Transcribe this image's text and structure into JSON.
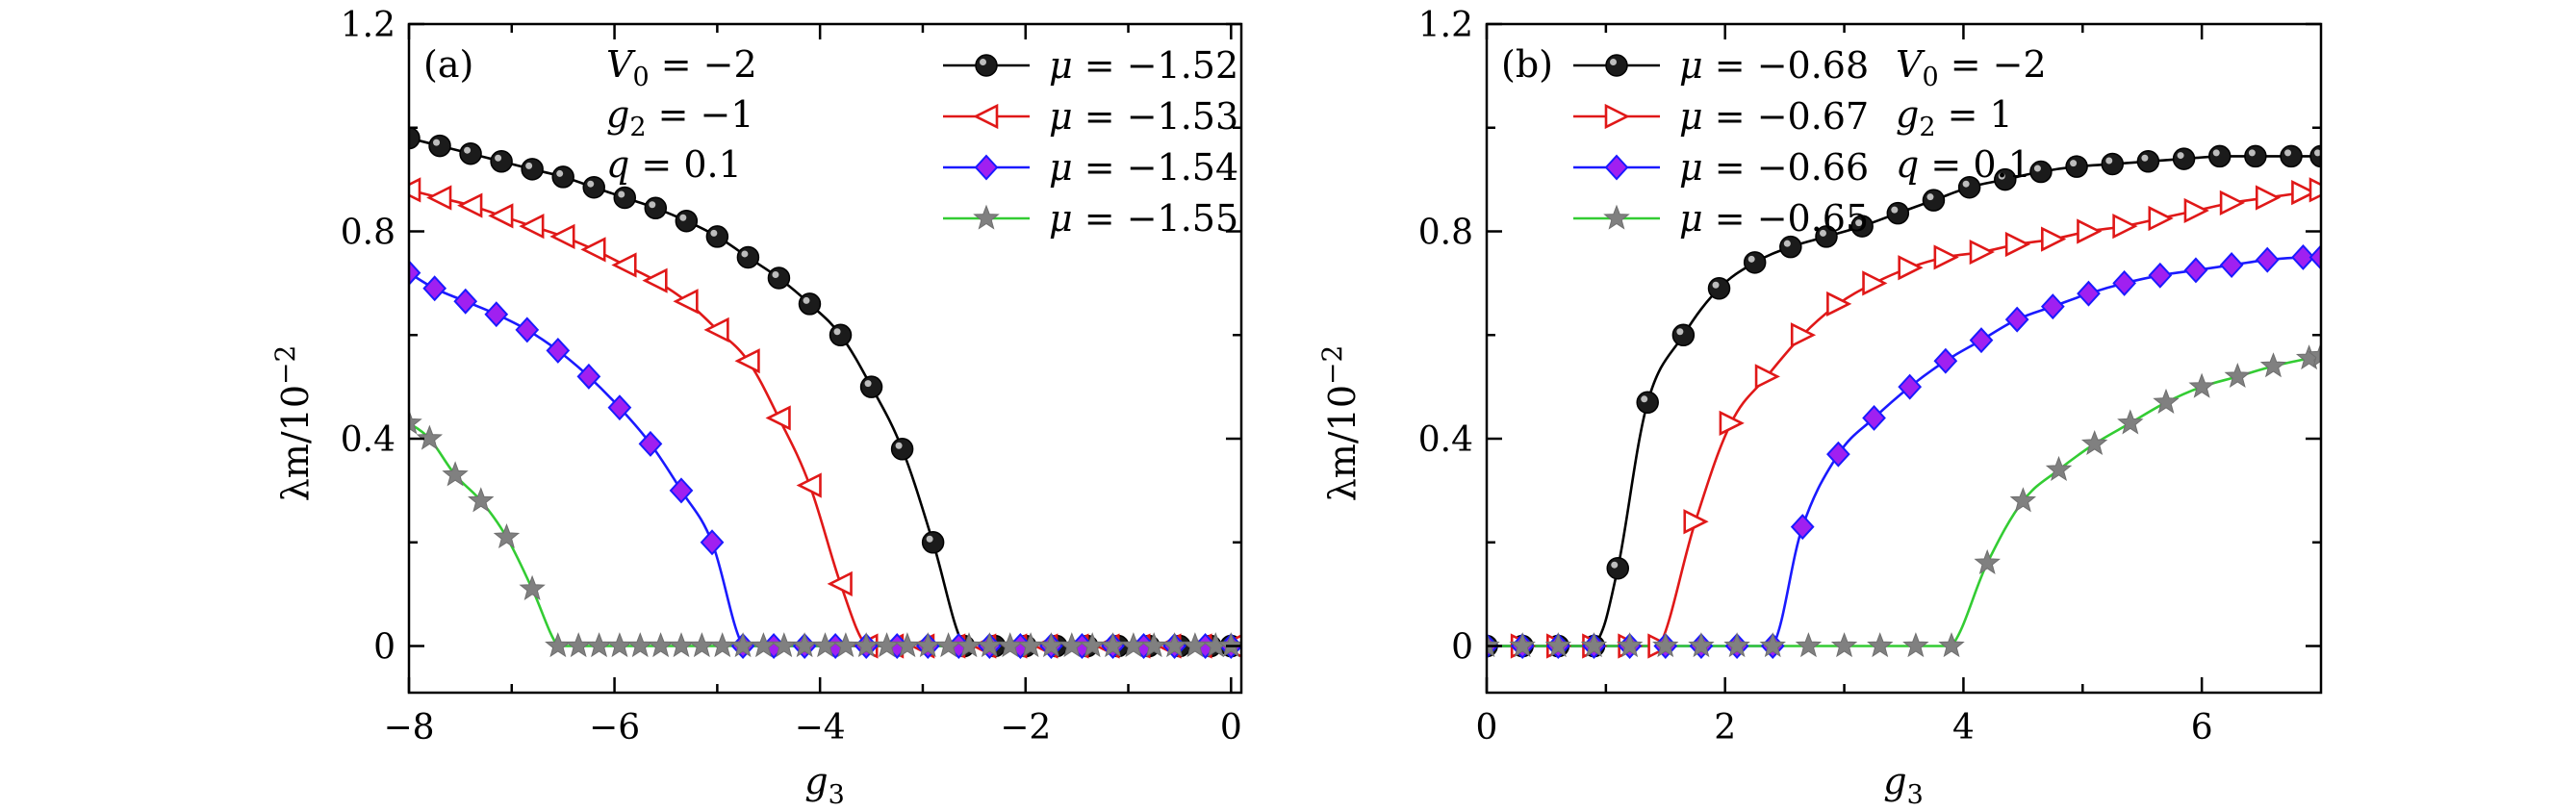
{
  "figure": {
    "ylabel_main": "λm/10",
    "ylabel_exp": "−2"
  },
  "chart_data": [
    {
      "type": "line",
      "panel_label": "(a)",
      "xlabel": "g3",
      "ylabel": "λm/10−2",
      "xlim": [
        -8,
        0.1
      ],
      "ylim": [
        -0.09,
        1.2
      ],
      "xticks": [
        -8,
        -6,
        -4,
        -2,
        0
      ],
      "xtick_labels": [
        "−8",
        "−6",
        "−4",
        "−2",
        "0"
      ],
      "yticks": [
        0,
        0.4,
        0.8,
        1.2
      ],
      "ytick_labels": [
        "0",
        "0.4",
        "0.8",
        "1.2"
      ],
      "annotations": [
        "V0 = −2",
        "g2 = −1",
        "q = 0.1"
      ],
      "legend": "top-right",
      "series": [
        {
          "name": "μ = −1.52",
          "color": "#000000",
          "marker": "circle",
          "x": [
            -8.0,
            -7.7,
            -7.4,
            -7.1,
            -6.8,
            -6.5,
            -6.2,
            -5.9,
            -5.6,
            -5.3,
            -5.0,
            -4.7,
            -4.4,
            -4.1,
            -3.8,
            -3.5,
            -3.2,
            -2.9,
            -2.6,
            -2.3,
            -2.0,
            -1.7,
            -1.4,
            -1.1,
            -0.8,
            -0.5,
            -0.2,
            0.0
          ],
          "y": [
            0.98,
            0.965,
            0.95,
            0.935,
            0.92,
            0.905,
            0.885,
            0.865,
            0.845,
            0.82,
            0.79,
            0.75,
            0.71,
            0.66,
            0.6,
            0.5,
            0.38,
            0.2,
            0,
            0,
            0,
            0,
            0,
            0,
            0,
            0,
            0,
            0
          ]
        },
        {
          "name": "μ = −1.53",
          "color": "#e01818",
          "marker": "triangle-left",
          "x": [
            -8.0,
            -7.7,
            -7.4,
            -7.1,
            -6.8,
            -6.5,
            -6.2,
            -5.9,
            -5.6,
            -5.3,
            -5.0,
            -4.7,
            -4.4,
            -4.1,
            -3.8,
            -3.55,
            -3.3,
            -3.0,
            -2.7,
            -2.4,
            -2.1,
            -1.8,
            -1.5,
            -1.2,
            -0.9,
            -0.6,
            -0.3,
            0.0
          ],
          "y": [
            0.88,
            0.865,
            0.85,
            0.83,
            0.81,
            0.79,
            0.765,
            0.735,
            0.705,
            0.665,
            0.61,
            0.55,
            0.44,
            0.31,
            0.12,
            0,
            0,
            0,
            0,
            0,
            0,
            0,
            0,
            0,
            0,
            0,
            0,
            0
          ]
        },
        {
          "name": "μ = −1.54",
          "color": "#1a1aff",
          "marker": "diamond",
          "x": [
            -8.0,
            -7.75,
            -7.45,
            -7.15,
            -6.85,
            -6.55,
            -6.25,
            -5.95,
            -5.65,
            -5.35,
            -5.05,
            -4.75,
            -4.45,
            -4.15,
            -3.85,
            -3.55,
            -3.25,
            -2.95,
            -2.65,
            -2.35,
            -2.05,
            -1.75,
            -1.45,
            -1.15,
            -0.85,
            -0.55,
            -0.25,
            0.0
          ],
          "y": [
            0.72,
            0.69,
            0.665,
            0.64,
            0.61,
            0.57,
            0.52,
            0.46,
            0.39,
            0.3,
            0.2,
            0,
            0,
            0,
            0,
            0,
            0,
            0,
            0,
            0,
            0,
            0,
            0,
            0,
            0,
            0,
            0,
            0
          ]
        },
        {
          "name": "μ = −1.55",
          "color": "#33cc33",
          "marker": "star",
          "x": [
            -8.0,
            -7.8,
            -7.55,
            -7.3,
            -7.05,
            -6.8,
            -6.55,
            -6.35,
            -6.15,
            -5.95,
            -5.75,
            -5.55,
            -5.35,
            -5.15,
            -4.95,
            -4.75,
            -4.55,
            -4.35,
            -4.15,
            -3.95,
            -3.75,
            -3.55,
            -3.35,
            -3.15,
            -2.95,
            -2.75,
            -2.55,
            -2.35,
            -2.15,
            -1.95,
            -1.75,
            -1.55,
            -1.35,
            -1.15,
            -0.95,
            -0.75,
            -0.55,
            -0.35,
            -0.15,
            0.0
          ],
          "y": [
            0.43,
            0.4,
            0.33,
            0.28,
            0.21,
            0.11,
            0,
            0,
            0,
            0,
            0,
            0,
            0,
            0,
            0,
            0,
            0,
            0,
            0,
            0,
            0,
            0,
            0,
            0,
            0,
            0,
            0,
            0,
            0,
            0,
            0,
            0,
            0,
            0,
            0,
            0,
            0,
            0,
            0,
            0
          ]
        }
      ]
    },
    {
      "type": "line",
      "panel_label": "(b)",
      "xlabel": "g3",
      "ylabel": "λm/10−2",
      "xlim": [
        0,
        7
      ],
      "ylim": [
        -0.09,
        1.2
      ],
      "xticks": [
        0,
        2,
        4,
        6
      ],
      "xtick_labels": [
        "0",
        "2",
        "4",
        "6"
      ],
      "yticks": [
        0,
        0.4,
        0.8,
        1.2
      ],
      "ytick_labels": [
        "0",
        "0.4",
        "0.8",
        "1.2"
      ],
      "annotations": [
        "V0 = −2",
        "g2 = 1",
        "q = 0.1"
      ],
      "legend": "top-left",
      "series": [
        {
          "name": "μ = −0.68",
          "color": "#000000",
          "marker": "circle",
          "x": [
            0.0,
            0.3,
            0.6,
            0.9,
            1.1,
            1.35,
            1.65,
            1.95,
            2.25,
            2.55,
            2.85,
            3.15,
            3.45,
            3.75,
            4.05,
            4.35,
            4.65,
            4.95,
            5.25,
            5.55,
            5.85,
            6.15,
            6.45,
            6.75,
            7.0
          ],
          "y": [
            0,
            0,
            0,
            0,
            0.15,
            0.47,
            0.6,
            0.69,
            0.74,
            0.77,
            0.79,
            0.81,
            0.835,
            0.86,
            0.885,
            0.9,
            0.915,
            0.925,
            0.93,
            0.935,
            0.94,
            0.945,
            0.945,
            0.945,
            0.945
          ]
        },
        {
          "name": "μ = −0.67",
          "color": "#e01818",
          "marker": "triangle-right",
          "x": [
            0.0,
            0.3,
            0.6,
            0.9,
            1.2,
            1.45,
            1.75,
            2.05,
            2.35,
            2.65,
            2.95,
            3.25,
            3.55,
            3.85,
            4.15,
            4.45,
            4.75,
            5.05,
            5.35,
            5.65,
            5.95,
            6.25,
            6.55,
            6.85,
            7.0
          ],
          "y": [
            0,
            0,
            0,
            0,
            0,
            0,
            0.24,
            0.43,
            0.52,
            0.6,
            0.66,
            0.7,
            0.73,
            0.75,
            0.76,
            0.775,
            0.785,
            0.8,
            0.81,
            0.825,
            0.84,
            0.855,
            0.865,
            0.875,
            0.88
          ]
        },
        {
          "name": "μ = −0.66",
          "color": "#1a1aff",
          "marker": "diamond",
          "x": [
            0.0,
            0.3,
            0.6,
            0.9,
            1.2,
            1.5,
            1.8,
            2.1,
            2.4,
            2.65,
            2.95,
            3.25,
            3.55,
            3.85,
            4.15,
            4.45,
            4.75,
            5.05,
            5.35,
            5.65,
            5.95,
            6.25,
            6.55,
            6.85,
            7.0
          ],
          "y": [
            0,
            0,
            0,
            0,
            0,
            0,
            0,
            0,
            0,
            0.23,
            0.37,
            0.44,
            0.5,
            0.55,
            0.59,
            0.63,
            0.655,
            0.68,
            0.7,
            0.715,
            0.725,
            0.735,
            0.745,
            0.75,
            0.75
          ]
        },
        {
          "name": "μ = −0.65",
          "color": "#33cc33",
          "marker": "star",
          "x": [
            0.0,
            0.3,
            0.6,
            0.9,
            1.2,
            1.5,
            1.8,
            2.1,
            2.4,
            2.7,
            3.0,
            3.3,
            3.6,
            3.9,
            4.2,
            4.5,
            4.8,
            5.1,
            5.4,
            5.7,
            6.0,
            6.3,
            6.6,
            6.9,
            7.0
          ],
          "y": [
            0,
            0,
            0,
            0,
            0,
            0,
            0,
            0,
            0,
            0,
            0,
            0,
            0,
            0,
            0.16,
            0.28,
            0.34,
            0.39,
            0.43,
            0.47,
            0.5,
            0.52,
            0.54,
            0.555,
            0.56
          ]
        }
      ]
    }
  ]
}
